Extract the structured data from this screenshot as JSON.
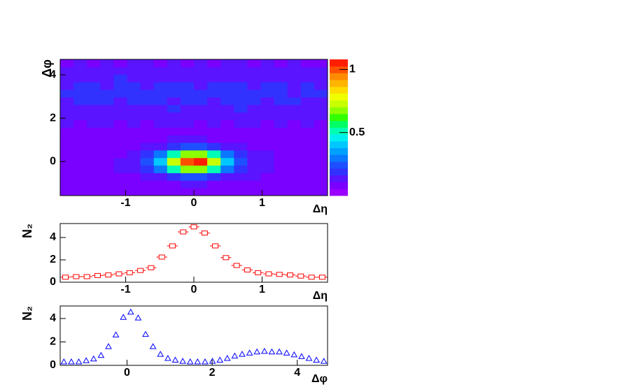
{
  "chart_data": [
    {
      "type": "heatmap",
      "xlabel": "Δη",
      "ylabel": "Δφ",
      "x": [
        -1.862,
        -1.666,
        -1.47,
        -1.274,
        -1.078,
        -0.882,
        -0.686,
        -0.49,
        -0.294,
        -0.098,
        0.098,
        0.294,
        0.49,
        0.686,
        0.882,
        1.078,
        1.274,
        1.47,
        1.666,
        1.862
      ],
      "y": [
        -1.396,
        -1.047,
        -0.698,
        -0.349,
        0,
        0.349,
        0.698,
        1.047,
        1.396,
        1.745,
        2.094,
        2.443,
        2.793,
        3.142,
        3.491,
        3.84,
        4.189,
        4.538
      ],
      "z": [
        [
          0.08,
          0.07,
          0.09,
          0.08,
          0.06,
          0.09,
          0.08,
          0.07,
          0.09,
          0.08,
          0.09,
          0.08,
          0.07,
          0.09,
          0.08,
          0.06,
          0.08,
          0.09,
          0.07,
          0.08
        ],
        [
          0.08,
          0.07,
          0.09,
          0.08,
          0.08,
          0.09,
          0.09,
          0.1,
          0.1,
          0.11,
          0.11,
          0.1,
          0.09,
          0.09,
          0.08,
          0.09,
          0.08,
          0.07,
          0.08,
          0.09
        ],
        [
          0.08,
          0.09,
          0.07,
          0.09,
          0.09,
          0.1,
          0.12,
          0.15,
          0.2,
          0.24,
          0.25,
          0.21,
          0.15,
          0.12,
          0.11,
          0.09,
          0.08,
          0.09,
          0.07,
          0.08
        ],
        [
          0.08,
          0.08,
          0.09,
          0.1,
          0.11,
          0.13,
          0.18,
          0.3,
          0.5,
          0.68,
          0.69,
          0.51,
          0.31,
          0.18,
          0.13,
          0.11,
          0.1,
          0.09,
          0.07,
          0.08
        ],
        [
          0.08,
          0.09,
          0.09,
          0.1,
          0.12,
          0.15,
          0.22,
          0.42,
          0.73,
          1.02,
          1.04,
          0.74,
          0.41,
          0.23,
          0.15,
          0.11,
          0.1,
          0.09,
          0.08,
          0.08
        ],
        [
          0.07,
          0.08,
          0.09,
          0.1,
          0.1,
          0.13,
          0.19,
          0.3,
          0.51,
          0.7,
          0.68,
          0.5,
          0.3,
          0.18,
          0.14,
          0.11,
          0.09,
          0.09,
          0.08,
          0.08
        ],
        [
          0.08,
          0.08,
          0.08,
          0.09,
          0.09,
          0.1,
          0.12,
          0.16,
          0.21,
          0.25,
          0.24,
          0.2,
          0.15,
          0.12,
          0.1,
          0.09,
          0.09,
          0.08,
          0.08,
          0.07
        ],
        [
          0.09,
          0.08,
          0.08,
          0.09,
          0.09,
          0.09,
          0.09,
          0.1,
          0.11,
          0.11,
          0.11,
          0.1,
          0.1,
          0.09,
          0.09,
          0.09,
          0.08,
          0.09,
          0.08,
          0.09
        ],
        [
          0.09,
          0.1,
          0.09,
          0.09,
          0.08,
          0.09,
          0.1,
          0.09,
          0.09,
          0.1,
          0.1,
          0.09,
          0.1,
          0.09,
          0.09,
          0.1,
          0.09,
          0.08,
          0.09,
          0.09
        ],
        [
          0.11,
          0.1,
          0.11,
          0.12,
          0.1,
          0.11,
          0.1,
          0.11,
          0.12,
          0.11,
          0.1,
          0.11,
          0.1,
          0.12,
          0.11,
          0.1,
          0.11,
          0.1,
          0.11,
          0.1
        ],
        [
          0.12,
          0.13,
          0.14,
          0.12,
          0.13,
          0.12,
          0.14,
          0.13,
          0.12,
          0.13,
          0.14,
          0.12,
          0.13,
          0.12,
          0.14,
          0.13,
          0.12,
          0.13,
          0.12,
          0.11
        ],
        [
          0.14,
          0.15,
          0.16,
          0.15,
          0.14,
          0.16,
          0.15,
          0.14,
          0.17,
          0.15,
          0.14,
          0.16,
          0.15,
          0.17,
          0.14,
          0.15,
          0.16,
          0.15,
          0.13,
          0.14
        ],
        [
          0.16,
          0.17,
          0.18,
          0.17,
          0.15,
          0.19,
          0.17,
          0.18,
          0.16,
          0.18,
          0.17,
          0.16,
          0.19,
          0.17,
          0.18,
          0.16,
          0.17,
          0.18,
          0.15,
          0.16
        ],
        [
          0.17,
          0.18,
          0.17,
          0.19,
          0.18,
          0.17,
          0.2,
          0.18,
          0.17,
          0.19,
          0.18,
          0.2,
          0.17,
          0.18,
          0.19,
          0.17,
          0.18,
          0.16,
          0.18,
          0.17
        ],
        [
          0.16,
          0.18,
          0.17,
          0.16,
          0.18,
          0.17,
          0.16,
          0.19,
          0.18,
          0.17,
          0.16,
          0.18,
          0.17,
          0.19,
          0.16,
          0.18,
          0.17,
          0.16,
          0.17,
          0.15
        ],
        [
          0.15,
          0.14,
          0.16,
          0.15,
          0.17,
          0.15,
          0.14,
          0.16,
          0.15,
          0.14,
          0.16,
          0.15,
          0.14,
          0.16,
          0.15,
          0.14,
          0.15,
          0.16,
          0.14,
          0.13
        ],
        [
          0.12,
          0.13,
          0.12,
          0.14,
          0.13,
          0.12,
          0.13,
          0.12,
          0.14,
          0.13,
          0.12,
          0.13,
          0.14,
          0.12,
          0.13,
          0.12,
          0.13,
          0.12,
          0.11,
          0.12
        ],
        [
          0.1,
          0.11,
          0.1,
          0.11,
          0.1,
          0.12,
          0.11,
          0.1,
          0.11,
          0.1,
          0.11,
          0.1,
          0.12,
          0.11,
          0.1,
          0.11,
          0.1,
          0.11,
          0.1,
          0.1
        ]
      ],
      "xlim": [
        -1.96,
        1.96
      ],
      "ylim": [
        -1.571,
        4.712
      ],
      "xticks": [
        -1,
        0,
        1
      ],
      "yticks": [
        0,
        2,
        4
      ],
      "zlim": [
        0,
        1.08
      ],
      "zticks": [
        0.5,
        1
      ],
      "colorscale": [
        "#9900ff",
        "#7a00ff",
        "#5a14ff",
        "#3232ff",
        "#1e50ff",
        "#0a78ff",
        "#00a0ff",
        "#00c8ff",
        "#00f0f0",
        "#00ffb4",
        "#00ff64",
        "#32ff00",
        "#8cff00",
        "#c8ff00",
        "#f0ff00",
        "#ffdc00",
        "#ffb400",
        "#ff8c00",
        "#ff5000",
        "#ff1e00"
      ]
    },
    {
      "type": "scatter",
      "xlabel": "Δη",
      "ylabel": "N₂",
      "marker": "square",
      "color": "#ff0000",
      "x": [
        -1.882,
        -1.725,
        -1.568,
        -1.411,
        -1.254,
        -1.098,
        -0.941,
        -0.784,
        -0.627,
        -0.47,
        -0.314,
        -0.157,
        0,
        0.157,
        0.314,
        0.47,
        0.627,
        0.784,
        0.941,
        1.098,
        1.254,
        1.411,
        1.568,
        1.725,
        1.882
      ],
      "values": [
        0.45,
        0.5,
        0.5,
        0.6,
        0.65,
        0.75,
        0.85,
        1.05,
        1.3,
        2.25,
        3.25,
        4.5,
        4.95,
        4.4,
        3.25,
        2.2,
        1.5,
        1.1,
        0.85,
        0.75,
        0.7,
        0.65,
        0.55,
        0.45,
        0.45
      ],
      "xlim": [
        -1.96,
        1.96
      ],
      "ylim": [
        0,
        5.25
      ],
      "xticks": [
        -1,
        0,
        1
      ],
      "yticks": [
        0,
        2,
        4
      ]
    },
    {
      "type": "scatter",
      "xlabel": "Δφ",
      "ylabel": "N₂",
      "marker": "triangle",
      "color": "#0000ff",
      "x": [
        -1.484,
        -1.309,
        -1.134,
        -0.96,
        -0.785,
        -0.611,
        -0.436,
        -0.262,
        -0.087,
        0.087,
        0.262,
        0.436,
        0.611,
        0.785,
        0.96,
        1.134,
        1.309,
        1.484,
        1.658,
        1.833,
        2.007,
        2.182,
        2.356,
        2.531,
        2.705,
        2.88,
        3.054,
        3.229,
        3.403,
        3.578,
        3.752,
        3.927,
        4.102,
        4.276,
        4.451,
        4.625
      ],
      "values": [
        0.3,
        0.3,
        0.3,
        0.4,
        0.55,
        0.85,
        1.6,
        2.6,
        4.1,
        4.55,
        4.05,
        2.65,
        1.6,
        0.95,
        0.6,
        0.45,
        0.35,
        0.3,
        0.3,
        0.3,
        0.35,
        0.45,
        0.6,
        0.8,
        0.95,
        1.05,
        1.15,
        1.2,
        1.15,
        1.15,
        1.05,
        0.9,
        0.75,
        0.6,
        0.45,
        0.35
      ],
      "xlim": [
        -1.571,
        4.712
      ],
      "ylim": [
        0,
        5.07
      ],
      "xticks": [
        0,
        2,
        4
      ],
      "yticks": [
        0,
        2,
        4
      ]
    }
  ]
}
